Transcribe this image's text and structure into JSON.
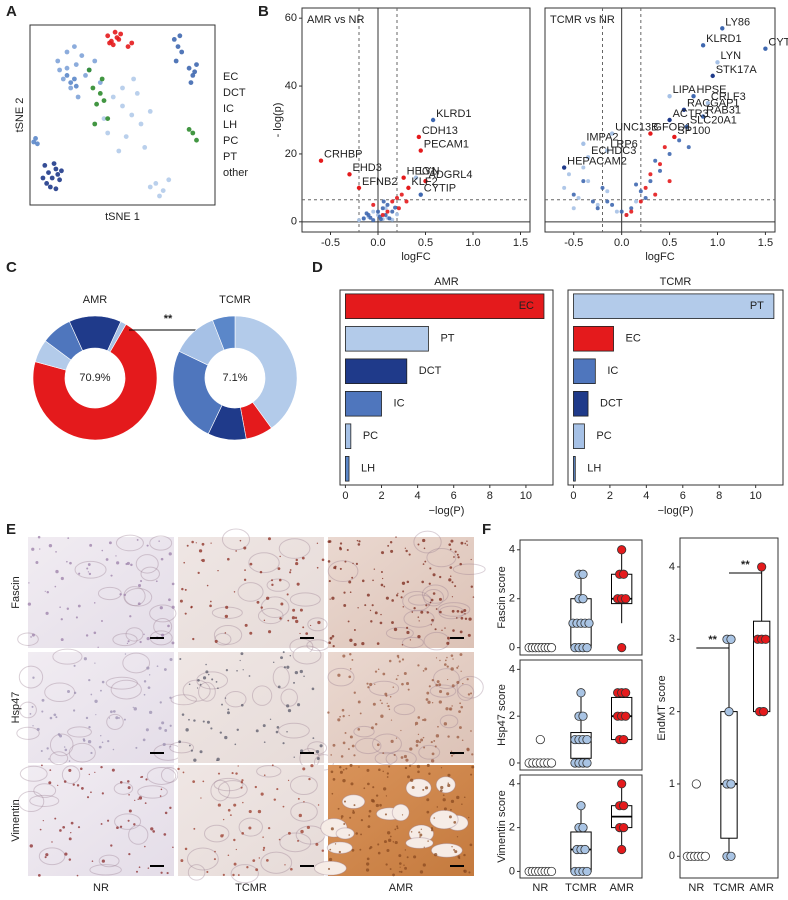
{
  "panel_labels": [
    "A",
    "B",
    "C",
    "D",
    "E",
    "F"
  ],
  "image_grid": {
    "rows": [
      "Fascin",
      "Hsp47",
      "Vimentin"
    ],
    "columns": [
      "NR",
      "TCMR",
      "AMR"
    ]
  },
  "chart_data": [
    {
      "type": "scatter",
      "xlabel": "tSNE 1",
      "ylabel": "tSNE 2",
      "xlim": [
        -50,
        50
      ],
      "ylim": [
        -50,
        50
      ],
      "series": [
        {
          "name": "EC",
          "color": "#e41a1c",
          "x": [
            -8,
            -6,
            -4,
            -2,
            -5,
            -3,
            -7,
            -1,
            3,
            5
          ],
          "values": [
            44,
            41,
            46,
            42,
            39,
            43,
            40,
            45,
            38,
            40
          ]
        },
        {
          "name": "DCT",
          "color": "#1f3a8a",
          "x": [
            -42,
            -40,
            -38,
            -36,
            -34,
            -41,
            -37,
            -35,
            -39,
            -33,
            -43,
            -36
          ],
          "values": [
            -28,
            -32,
            -35,
            -30,
            -36,
            -38,
            -27,
            -33,
            -40,
            -31,
            -35,
            -41
          ]
        },
        {
          "name": "IC",
          "color": "#3f68b0",
          "x": [
            28,
            30,
            32,
            29,
            31,
            36,
            38,
            40,
            37,
            39
          ],
          "values": [
            42,
            38,
            35,
            30,
            44,
            26,
            22,
            28,
            18,
            24
          ]
        },
        {
          "name": "LH",
          "color": "#5b87c9",
          "x": [
            -48,
            -47,
            -46,
            -28,
            -26,
            -30,
            -25
          ],
          "values": [
            -15,
            -13,
            -16,
            18,
            20,
            22,
            16
          ]
        },
        {
          "name": "PC",
          "color": "#7fa3d8",
          "x": [
            -35,
            -30,
            -25,
            -20,
            -15,
            -32,
            -28,
            -22,
            -18,
            -26,
            -34,
            -12,
            -24,
            -30
          ],
          "values": [
            30,
            35,
            28,
            22,
            30,
            20,
            15,
            33,
            25,
            38,
            25,
            18,
            10,
            26
          ]
        },
        {
          "name": "PT",
          "color": "#b3cbea",
          "x": [
            -5,
            0,
            5,
            10,
            15,
            -10,
            2,
            8,
            12,
            -2,
            6,
            18,
            22,
            25,
            20,
            15,
            0,
            -8
          ],
          "values": [
            10,
            5,
            0,
            -5,
            2,
            -2,
            -12,
            12,
            -18,
            -20,
            20,
            -38,
            -42,
            -36,
            -45,
            -40,
            15,
            -10
          ]
        },
        {
          "name": "other",
          "color": "#2e8b2e",
          "x": [
            -12,
            -14,
            -10,
            -8,
            -16,
            -11,
            38,
            40,
            36,
            -18,
            -15
          ],
          "values": [
            12,
            6,
            8,
            -2,
            15,
            20,
            -10,
            -14,
            -8,
            25,
            -5
          ]
        }
      ]
    },
    {
      "type": "scatter",
      "subtitle": "AMR vs NR",
      "xlabel": "logFC",
      "ylabel": "- log(p)",
      "zero_lines": true,
      "xlim": [
        -0.8,
        1.6
      ],
      "xticks": [
        -0.5,
        {
          "value": 0,
          "label": "0.0"
        },
        0.5,
        {
          "value": 1,
          "label": "1.0"
        },
        1.5
      ],
      "ylim": [
        -3,
        63
      ],
      "yticks": [
        0,
        20,
        40,
        60
      ],
      "thresholds": {
        "x": [
          -0.2,
          0.2
        ],
        "y": 6.5
      },
      "series": [
        {
          "color": "#a6c1e6",
          "x": [
            -0.2,
            -0.1,
            0,
            0.05,
            0.1,
            -0.05,
            0.15,
            0.2,
            -0.15,
            0.08
          ],
          "values": [
            0.5,
            1.5,
            2,
            0.8,
            1.2,
            3,
            0.6,
            2.2,
            0.9,
            4
          ]
        },
        {
          "color": "#3f68b0",
          "x": [
            -0.15,
            -0.1,
            -0.05,
            0,
            0.02,
            0.05,
            0.08,
            0.1,
            0.12,
            0.15,
            -0.08,
            0.03,
            0.06,
            -0.12,
            0.18
          ],
          "values": [
            1,
            2,
            0.5,
            3,
            1.5,
            4,
            2,
            5,
            1,
            3,
            1.2,
            0.8,
            6,
            2.5,
            4.2
          ]
        },
        {
          "color": "#e41a1c",
          "x": [
            0.1,
            0.15,
            0.2,
            0.22,
            0.25,
            0.05,
            -0.05,
            0.3
          ],
          "values": [
            3,
            6,
            7,
            4,
            8,
            2,
            5,
            6
          ]
        }
      ],
      "annotations": [
        {
          "text": "KLRD1",
          "x": 0.58,
          "y": 30,
          "color": "#3f68b0"
        },
        {
          "text": "CDH13",
          "x": 0.43,
          "y": 25,
          "color": "#e41a1c"
        },
        {
          "text": "PECAM1",
          "x": 0.45,
          "y": 21,
          "color": "#e41a1c"
        },
        {
          "text": "CRHBP",
          "x": -0.6,
          "y": 18,
          "color": "#e41a1c"
        },
        {
          "text": "EHD3",
          "x": -0.3,
          "y": 14,
          "color": "#e41a1c"
        },
        {
          "text": "EFNB2",
          "x": -0.2,
          "y": 10,
          "color": "#e41a1c"
        },
        {
          "text": "HEG1",
          "x": 0.27,
          "y": 13,
          "color": "#e41a1c"
        },
        {
          "text": "LYN",
          "x": 0.4,
          "y": 13,
          "color": "#a6c1e6"
        },
        {
          "text": "ADGRL4",
          "x": 0.5,
          "y": 12,
          "color": "#e41a1c"
        },
        {
          "text": "KLF2",
          "x": 0.32,
          "y": 10,
          "color": "#e41a1c"
        },
        {
          "text": "CYTIP",
          "x": 0.45,
          "y": 8,
          "color": "#3f68b0"
        }
      ]
    },
    {
      "type": "scatter",
      "subtitle": "TCMR vs NR",
      "xlabel": "logFC",
      "zero_lines": true,
      "xlim": [
        -0.8,
        1.6
      ],
      "xticks": [
        -0.5,
        {
          "value": 0,
          "label": "0.0"
        },
        0.5,
        {
          "value": 1,
          "label": "1.0"
        },
        1.5
      ],
      "ylim": [
        -3,
        63
      ],
      "thresholds": {
        "x": [
          -0.2,
          0.2
        ],
        "y": 6.5
      },
      "series": [
        {
          "color": "#a6c1e6",
          "x": [
            -0.6,
            -0.55,
            -0.45,
            -0.35,
            -0.25,
            -0.15,
            -0.05,
            0.05,
            0.15,
            -0.5,
            -0.4
          ],
          "values": [
            10,
            14,
            7,
            12,
            5,
            9,
            3,
            2,
            6,
            4,
            16
          ]
        },
        {
          "color": "#3f68b0",
          "x": [
            -0.5,
            -0.4,
            -0.3,
            -0.2,
            -0.1,
            0,
            0.1,
            0.2,
            0.3,
            0.4,
            0.5,
            0.6,
            0.7,
            -0.25,
            0.25,
            0.35,
            0.15,
            -0.15
          ],
          "values": [
            8,
            12,
            6,
            10,
            5,
            3,
            4,
            9,
            12,
            15,
            20,
            24,
            22,
            4,
            7,
            18,
            11,
            6
          ]
        },
        {
          "color": "#e41a1c",
          "x": [
            0.1,
            0.2,
            0.25,
            0.3,
            0.4,
            0.45,
            0.5,
            0.55,
            0.05,
            0.35
          ],
          "values": [
            3,
            6,
            10,
            14,
            17,
            22,
            12,
            25,
            2,
            8
          ]
        }
      ],
      "annotations": [
        {
          "text": "LY86",
          "x": 1.05,
          "y": 57,
          "color": "#3f68b0"
        },
        {
          "text": "CYTIP",
          "x": 1.5,
          "y": 51,
          "color": "#3f68b0"
        },
        {
          "text": "KLRD1",
          "x": 0.85,
          "y": 52,
          "color": "#3f68b0"
        },
        {
          "text": "LYN",
          "x": 1.0,
          "y": 47,
          "color": "#a6c1e6"
        },
        {
          "text": "STK17A",
          "x": 0.95,
          "y": 43,
          "color": "#1f3a8a"
        },
        {
          "text": "LIPA",
          "x": 0.5,
          "y": 37,
          "color": "#a6c1e6"
        },
        {
          "text": "HPSE",
          "x": 0.75,
          "y": 37,
          "color": "#3f68b0"
        },
        {
          "text": "CRLF3",
          "x": 0.9,
          "y": 35,
          "color": "#a6c1e6"
        },
        {
          "text": "RACGAP1",
          "x": 0.65,
          "y": 33,
          "color": "#1f3a8a"
        },
        {
          "text": "RAB31",
          "x": 0.85,
          "y": 31,
          "color": "#3f68b0"
        },
        {
          "text": "ACTR3",
          "x": 0.5,
          "y": 30,
          "color": "#1f3a8a"
        },
        {
          "text": "SLC20A1",
          "x": 0.68,
          "y": 28,
          "color": "#3f68b0"
        },
        {
          "text": "GFOD1",
          "x": 0.3,
          "y": 26,
          "color": "#e41a1c"
        },
        {
          "text": "SP100",
          "x": 0.55,
          "y": 25,
          "color": "#e41a1c"
        },
        {
          "text": "UNC13B",
          "x": -0.1,
          "y": 26,
          "color": "#a6c1e6"
        },
        {
          "text": "IMPA2",
          "x": -0.4,
          "y": 23,
          "color": "#a6c1e6"
        },
        {
          "text": "LRP6",
          "x": -0.15,
          "y": 21,
          "color": "#a6c1e6"
        },
        {
          "text": "ECHDC3",
          "x": -0.35,
          "y": 19,
          "color": "#a6c1e6"
        },
        {
          "text": "HEPACAM2",
          "x": -0.6,
          "y": 16,
          "color": "#1f3a8a"
        }
      ]
    },
    {
      "type": "pie",
      "title": "AMR",
      "significance": "**",
      "categories": [
        "EC",
        "PT",
        "IC",
        "DCT",
        "PC"
      ],
      "values": [
        70.9,
        6,
        8,
        13.6,
        1.5
      ],
      "value_labels": [
        "70.9%",
        null,
        null,
        null,
        null
      ],
      "colors": [
        "#e41a1c",
        "#b3cbea",
        "#4f76bd",
        "#1f3a8a",
        "#a6c1e6"
      ]
    },
    {
      "type": "pie",
      "title": "TCMR",
      "categories": [
        "PT",
        "EC",
        "DCT",
        "IC",
        "PC",
        "LH"
      ],
      "values": [
        40,
        7.1,
        10,
        25,
        12,
        5.9
      ],
      "value_labels": [
        null,
        "7.1%",
        null,
        null,
        null,
        null
      ],
      "colors": [
        "#b3cbea",
        "#e41a1c",
        "#1f3a8a",
        "#4f76bd",
        "#a6c1e6",
        "#5b87c9"
      ]
    },
    {
      "type": "bar",
      "title": "AMR",
      "xlabel": "−log(P)",
      "xlim": [
        -0.3,
        11.5
      ],
      "xticks": [
        0,
        2,
        4,
        6,
        8,
        10
      ],
      "categories": [
        "EC",
        "PT",
        "DCT",
        "IC",
        "PC",
        "LH"
      ],
      "values": [
        11,
        4.6,
        3.4,
        2.0,
        0.3,
        0.2
      ],
      "colors": [
        "#e41a1c",
        "#b3cbea",
        "#1f3a8a",
        "#4f76bd",
        "#a6c1e6",
        "#5b87c9"
      ]
    },
    {
      "type": "bar",
      "title": "TCMR",
      "xlabel": "−log(P)",
      "xlim": [
        -0.3,
        11.5
      ],
      "xticks": [
        0,
        2,
        4,
        6,
        8,
        10
      ],
      "categories": [
        "PT",
        "EC",
        "IC",
        "DCT",
        "PC",
        "LH"
      ],
      "values": [
        11,
        2.2,
        1.2,
        0.8,
        0.6,
        0.1
      ],
      "colors": [
        "#b3cbea",
        "#e41a1c",
        "#4f76bd",
        "#1f3a8a",
        "#a6c1e6",
        "#5b87c9"
      ]
    },
    {
      "type": "box",
      "ylabel": "Fascin score",
      "ylim": [
        -0.3,
        4.4
      ],
      "yticks": [
        0,
        2,
        4
      ],
      "colors": [
        "#ffffff",
        "#a9c4e4",
        "#e41a1c"
      ],
      "boxes": [
        {
          "min": 0,
          "q1": 0,
          "median": 0,
          "q3": 0,
          "max": 0,
          "points": [
            0,
            0,
            0,
            0,
            0,
            0,
            0,
            0
          ]
        },
        {
          "min": 0,
          "q1": 0,
          "median": 1,
          "q3": 2,
          "max": 3,
          "points": [
            0,
            0,
            0,
            0,
            1,
            1,
            1,
            1,
            1,
            2,
            2,
            3,
            3
          ]
        },
        {
          "min": 1,
          "q1": 1.8,
          "median": 2,
          "q3": 3,
          "max": 4,
          "points": [
            0,
            2,
            2,
            2,
            3,
            3,
            4
          ]
        }
      ]
    },
    {
      "type": "box",
      "ylabel": "Hsp47 score",
      "ylim": [
        -0.3,
        4.4
      ],
      "yticks": [
        0,
        2,
        4
      ],
      "colors": [
        "#ffffff",
        "#a9c4e4",
        "#e41a1c"
      ],
      "boxes": [
        {
          "min": 0,
          "q1": 0,
          "median": 0,
          "q3": 0,
          "max": 0,
          "points": [
            0,
            0,
            0,
            0,
            0,
            0,
            0,
            1
          ]
        },
        {
          "min": 0,
          "q1": 0.2,
          "median": 1,
          "q3": 1.3,
          "max": 3,
          "points": [
            0,
            0,
            0,
            0,
            1,
            1,
            1,
            1,
            2,
            2,
            3
          ]
        },
        {
          "min": 1,
          "q1": 1,
          "median": 2,
          "q3": 2.8,
          "max": 3,
          "points": [
            1,
            1,
            2,
            2,
            2,
            3,
            3,
            3
          ]
        }
      ]
    },
    {
      "type": "box",
      "ylabel": "Vimentin score",
      "ylim": [
        -0.3,
        4.4
      ],
      "yticks": [
        0,
        2,
        4
      ],
      "categories": [
        "NR",
        "TCMR",
        "AMR"
      ],
      "colors": [
        "#ffffff",
        "#a9c4e4",
        "#e41a1c"
      ],
      "boxes": [
        {
          "min": 0,
          "q1": 0,
          "median": 0,
          "q3": 0,
          "max": 0,
          "points": [
            0,
            0,
            0,
            0,
            0,
            0,
            0,
            0
          ]
        },
        {
          "min": 0,
          "q1": 0,
          "median": 1,
          "q3": 1.8,
          "max": 3,
          "points": [
            0,
            0,
            0,
            0,
            1,
            1,
            1,
            2,
            2,
            3
          ]
        },
        {
          "min": 1,
          "q1": 2,
          "median": 2.5,
          "q3": 3,
          "max": 4,
          "points": [
            1,
            2,
            2,
            3,
            3,
            4
          ]
        }
      ]
    },
    {
      "type": "box",
      "ylabel": "EndMT score",
      "ylim": [
        -0.3,
        4.4
      ],
      "yticks": [
        0,
        1,
        2,
        3,
        4
      ],
      "categories": [
        "NR",
        "TCMR",
        "AMR"
      ],
      "colors": [
        "#ffffff",
        "#a9c4e4",
        "#e41a1c"
      ],
      "significance": [
        "**",
        "**"
      ],
      "boxes": [
        {
          "min": 0,
          "q1": 0,
          "median": 0,
          "q3": 0,
          "max": 0,
          "points": [
            0,
            0,
            0,
            0,
            0,
            0,
            1
          ]
        },
        {
          "min": 0,
          "q1": 0.25,
          "median": 1,
          "q3": 2,
          "max": 3,
          "points": [
            0,
            0,
            1,
            1,
            2,
            3,
            3
          ]
        },
        {
          "min": 2,
          "q1": 2,
          "median": 3,
          "q3": 3.25,
          "max": 4,
          "points": [
            2,
            2,
            3,
            3,
            3,
            4
          ]
        }
      ]
    }
  ]
}
